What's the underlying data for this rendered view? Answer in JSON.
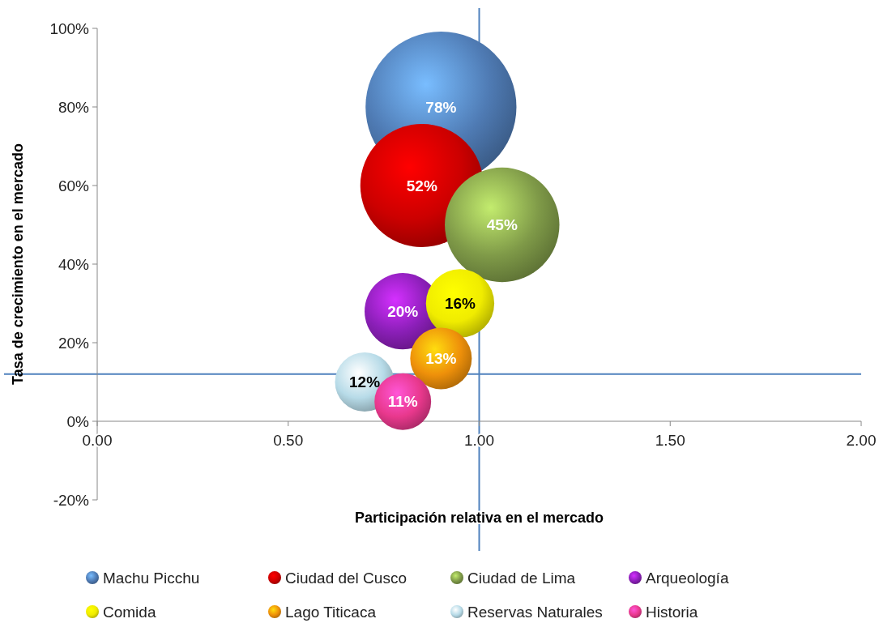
{
  "chart_data": {
    "type": "bubble",
    "xlabel": "Participación relativa en el mercado",
    "ylabel": "Tasa de crecimiento en el mercado",
    "xlim": [
      0,
      2
    ],
    "xticks": [
      {
        "value": 0,
        "label": "0.00"
      },
      {
        "value": 0.5,
        "label": "0.50"
      },
      {
        "value": 1,
        "label": "1.00"
      },
      {
        "value": 1.5,
        "label": "1.50"
      },
      {
        "value": 2,
        "label": "2.00"
      }
    ],
    "ylim": [
      -20,
      100
    ],
    "yticks": [
      {
        "value": -20,
        "label": "-20%"
      },
      {
        "value": 0,
        "label": "0%"
      },
      {
        "value": 20,
        "label": "20%"
      },
      {
        "value": 40,
        "label": "40%"
      },
      {
        "value": 60,
        "label": "60%"
      },
      {
        "value": 80,
        "label": "80%"
      },
      {
        "value": 100,
        "label": "100%"
      }
    ],
    "grid": false,
    "legend": "bottom",
    "ref_lines": [
      {
        "axis": "x",
        "value": 1,
        "color": "#4f81bd"
      },
      {
        "axis": "y",
        "value": 12,
        "color": "#4f81bd"
      }
    ],
    "series": [
      {
        "name": "Machu Picchu",
        "color": "#4f7bb4",
        "x": [
          0.9
        ],
        "values": [
          80
        ],
        "sizes": [
          78
        ],
        "value_labels": [
          "78%"
        ]
      },
      {
        "name": "Ciudad del Cusco",
        "color": "#cc0000",
        "x": [
          0.85
        ],
        "values": [
          60
        ],
        "sizes": [
          52
        ],
        "value_labels": [
          "52%"
        ]
      },
      {
        "name": "Ciudad de Lima",
        "color": "#7f9a48",
        "x": [
          1.06
        ],
        "values": [
          50
        ],
        "sizes": [
          45
        ],
        "value_labels": [
          "45%"
        ]
      },
      {
        "name": "Arqueología",
        "color": "#8b1fb8",
        "x": [
          0.8
        ],
        "values": [
          28
        ],
        "sizes": [
          20
        ],
        "value_labels": [
          "20%"
        ]
      },
      {
        "name": "Comida",
        "color": "#f0ec00",
        "x": [
          0.95
        ],
        "values": [
          30
        ],
        "sizes": [
          16
        ],
        "value_labels": [
          "16%"
        ]
      },
      {
        "name": "Lago Titicaca",
        "color": "#ee900a",
        "x": [
          0.9
        ],
        "values": [
          16
        ],
        "sizes": [
          13
        ],
        "value_labels": [
          "13%"
        ]
      },
      {
        "name": "Reservas Naturales",
        "color": "#b7dbe8",
        "x": [
          0.7
        ],
        "values": [
          10
        ],
        "sizes": [
          12
        ],
        "value_labels": [
          "12%"
        ]
      },
      {
        "name": "Historia",
        "color": "#e8388c",
        "x": [
          0.8
        ],
        "values": [
          5
        ],
        "sizes": [
          11
        ],
        "value_labels": [
          "11%"
        ]
      }
    ]
  }
}
